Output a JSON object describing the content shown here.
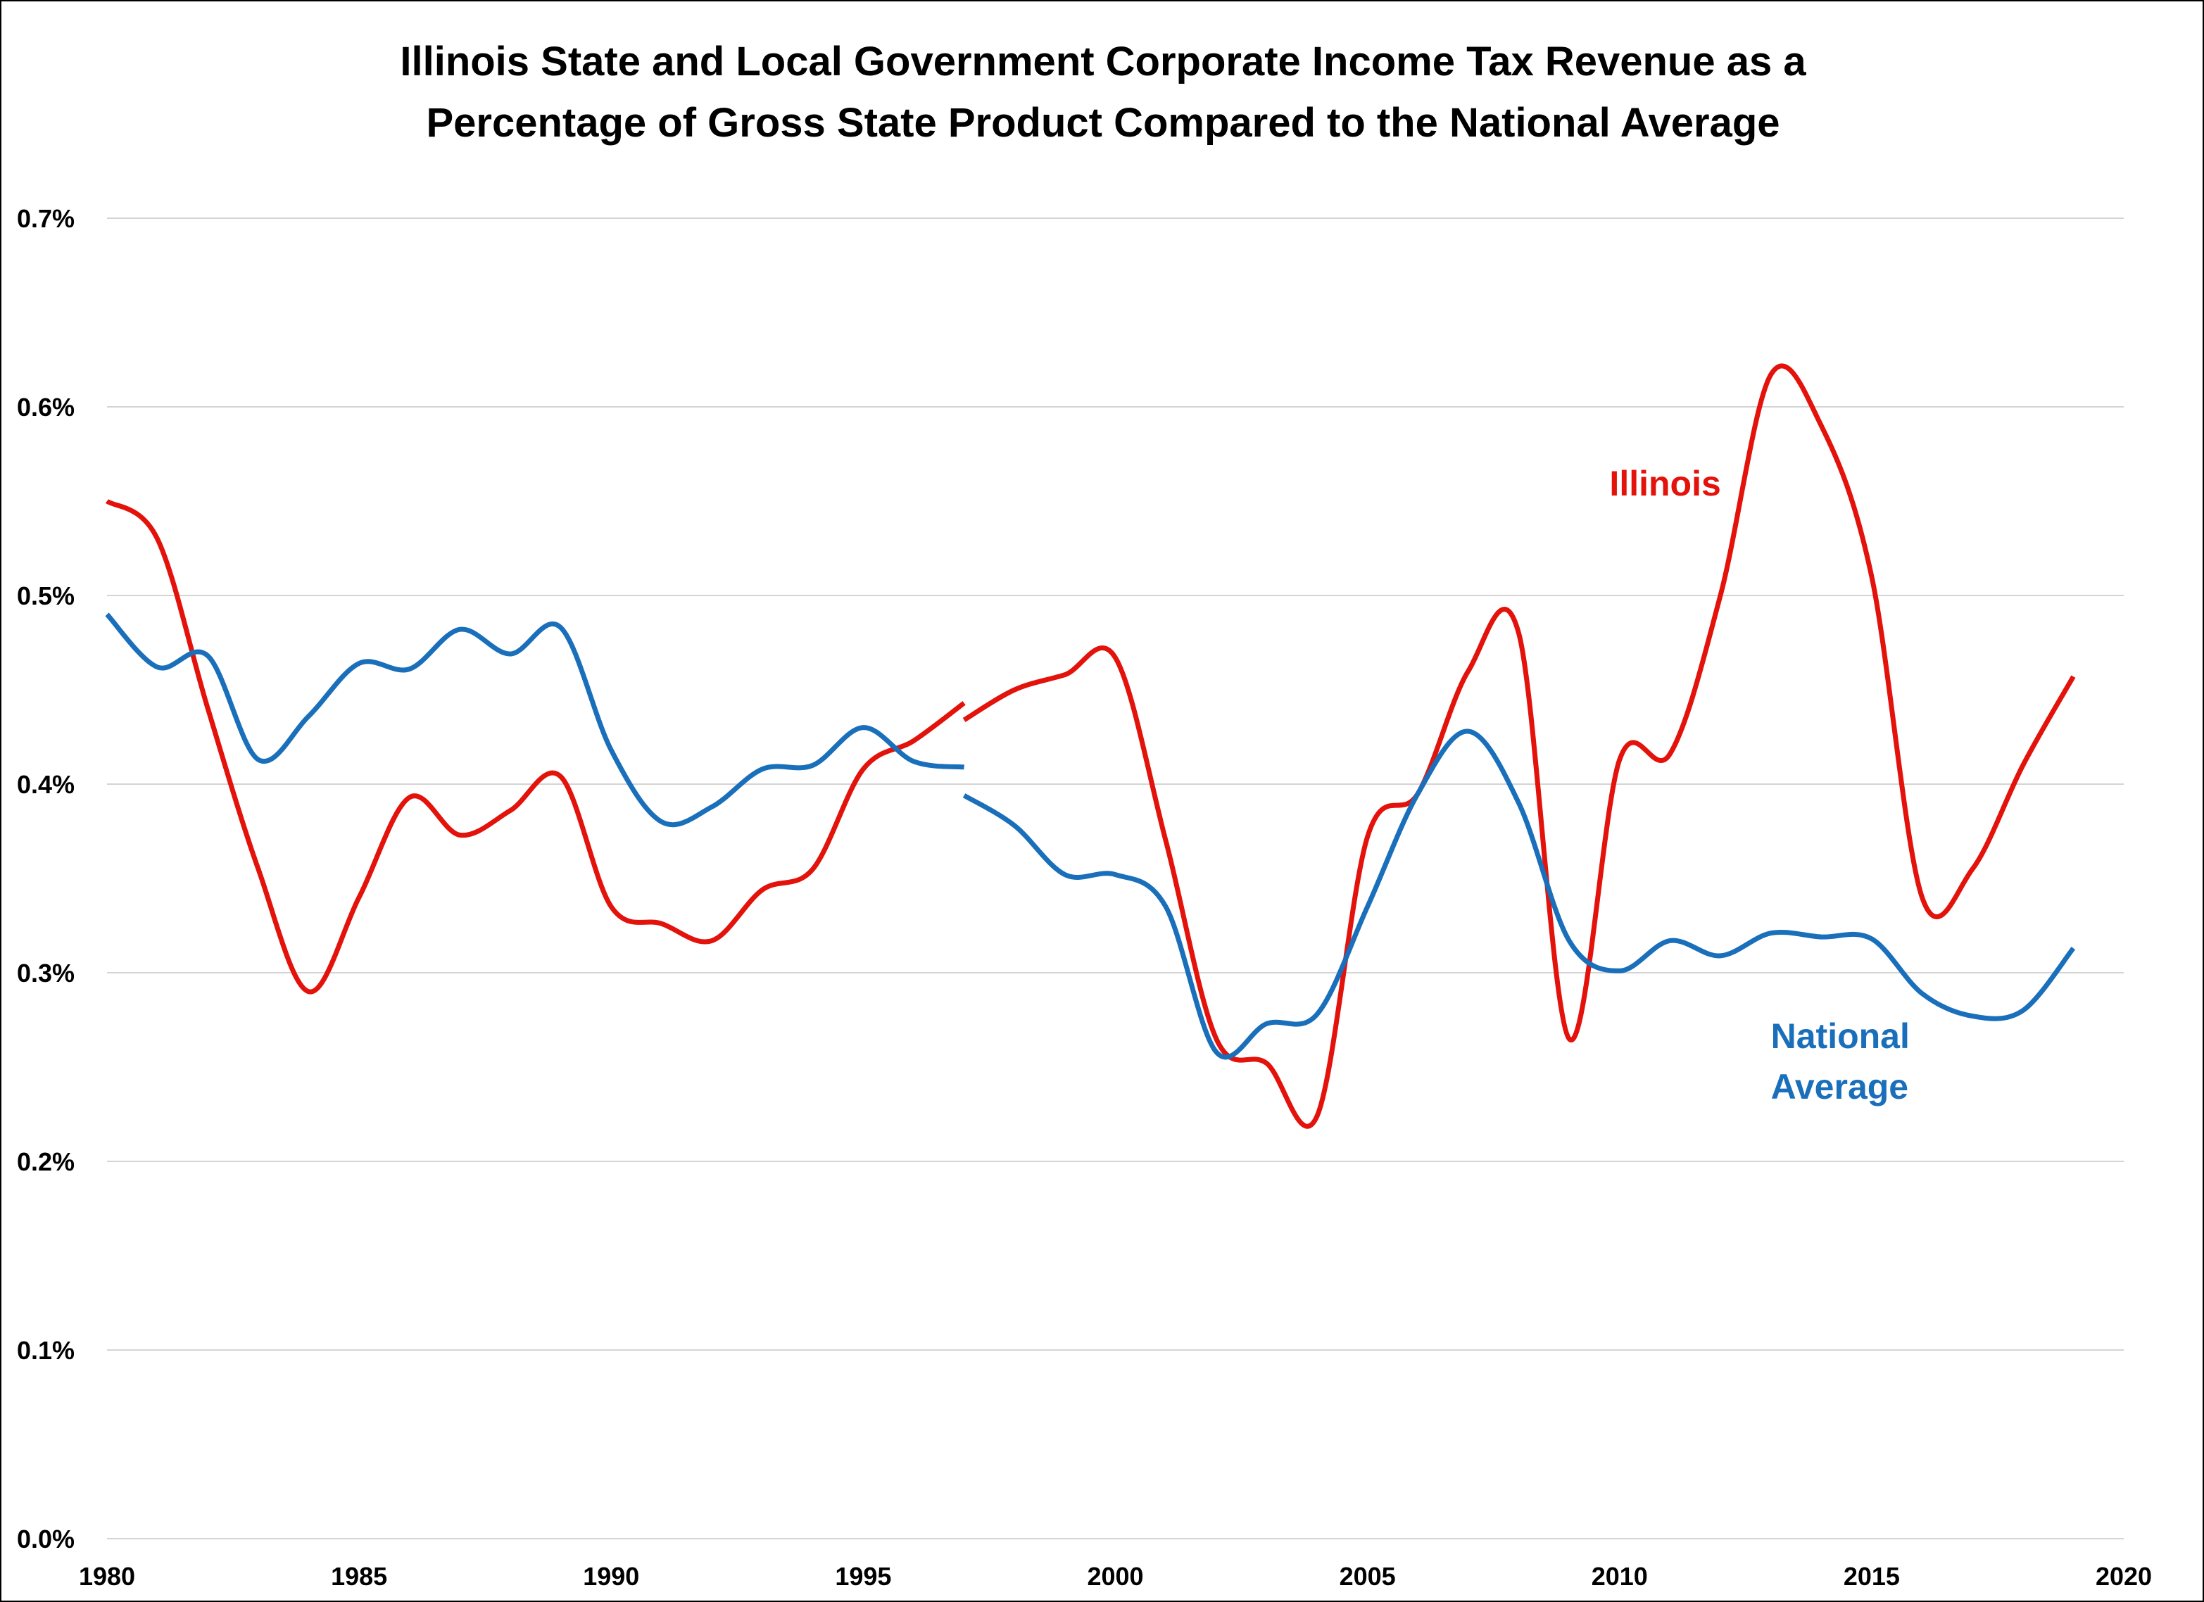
{
  "chart_data": {
    "type": "line",
    "title_lines": [
      "Illinois State and Local Government Corporate Income Tax Revenue as a",
      "Percentage of Gross State Product Compared to the National Average"
    ],
    "xlabel": "",
    "ylabel": "",
    "xlim": [
      1980,
      2020
    ],
    "ylim": [
      0,
      0.7
    ],
    "x_ticks": [
      1980,
      1985,
      1990,
      1995,
      2000,
      2005,
      2010,
      2015,
      2020
    ],
    "y_ticks": [
      {
        "value": 0.0,
        "label": "0.0%"
      },
      {
        "value": 0.1,
        "label": "0.1%"
      },
      {
        "value": 0.2,
        "label": "0.2%"
      },
      {
        "value": 0.3,
        "label": "0.3%"
      },
      {
        "value": 0.4,
        "label": "0.4%"
      },
      {
        "value": 0.5,
        "label": "0.5%"
      },
      {
        "value": 0.6,
        "label": "0.6%"
      },
      {
        "value": 0.7,
        "label": "0.7%"
      }
    ],
    "grid": true,
    "series": [
      {
        "name": "Illinois",
        "color": "#e3120b",
        "segments": [
          {
            "x": [
              1980,
              1981,
              1982,
              1983,
              1984,
              1985,
              1986,
              1987,
              1988,
              1989,
              1990,
              1991,
              1992,
              1993,
              1994,
              1995,
              1996,
              1997
            ],
            "y": [
              0.55,
              0.53,
              0.44,
              0.355,
              0.29,
              0.34,
              0.393,
              0.373,
              0.386,
              0.404,
              0.335,
              0.326,
              0.317,
              0.344,
              0.355,
              0.408,
              0.423,
              0.443
            ]
          },
          {
            "x": [
              1997,
              1998,
              1999,
              2000,
              2001,
              2002,
              2003,
              2004,
              2005,
              2006,
              2007,
              2008,
              2009,
              2010,
              2011,
              2012,
              2013,
              2014,
              2015,
              2016,
              2017,
              2018,
              2019
            ],
            "y": [
              0.434,
              0.45,
              0.458,
              0.467,
              0.37,
              0.265,
              0.252,
              0.224,
              0.372,
              0.395,
              0.46,
              0.48,
              0.265,
              0.413,
              0.416,
              0.5,
              0.617,
              0.59,
              0.51,
              0.34,
              0.355,
              0.41,
              0.457
            ]
          }
        ]
      },
      {
        "name": "National Average",
        "color": "#1a6fbb",
        "segments": [
          {
            "x": [
              1980,
              1981,
              1982,
              1983,
              1984,
              1985,
              1986,
              1987,
              1988,
              1989,
              1990,
              1991,
              1992,
              1993,
              1994,
              1995,
              1996,
              1997
            ],
            "y": [
              0.49,
              0.462,
              0.468,
              0.413,
              0.436,
              0.464,
              0.461,
              0.482,
              0.469,
              0.483,
              0.418,
              0.38,
              0.388,
              0.408,
              0.41,
              0.43,
              0.412,
              0.409
            ]
          },
          {
            "x": [
              1997,
              1998,
              1999,
              2000,
              2001,
              2002,
              2003,
              2004,
              2005,
              2006,
              2007,
              2008,
              2009,
              2010,
              2011,
              2012,
              2013,
              2014,
              2015,
              2016,
              2017,
              2018,
              2019
            ],
            "y": [
              0.394,
              0.378,
              0.352,
              0.352,
              0.335,
              0.258,
              0.273,
              0.278,
              0.335,
              0.395,
              0.428,
              0.39,
              0.317,
              0.301,
              0.317,
              0.309,
              0.321,
              0.319,
              0.318,
              0.289,
              0.277,
              0.28,
              0.313
            ]
          }
        ]
      }
    ],
    "annotations": [
      {
        "text_lines": [
          "Illinois"
        ],
        "series": "Illinois",
        "color": "#e3120b",
        "anchor": {
          "x": 2009.8,
          "y": 0.553
        }
      },
      {
        "text_lines": [
          "National",
          "Average"
        ],
        "series": "National Average",
        "color": "#1a6fbb",
        "anchor": {
          "x": 2013.0,
          "y": 0.26
        }
      }
    ]
  }
}
